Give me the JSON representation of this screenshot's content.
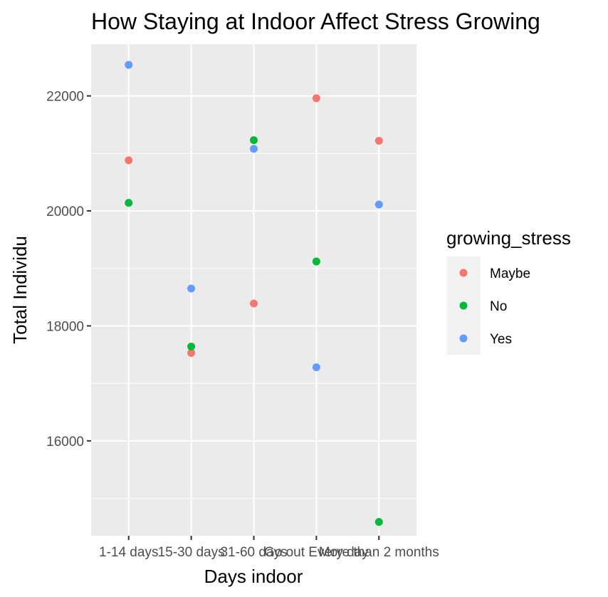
{
  "chart_data": {
    "type": "scatter",
    "title": "How Staying at Indoor Affect Stress Growing",
    "xlabel": "Days indoor",
    "ylabel": "Total Individu",
    "categories": [
      "1-14 days",
      "15-30 days",
      "31-60 days",
      "Go out Every day",
      "More than 2 months"
    ],
    "ylim": [
      14350,
      22900
    ],
    "yticks": [
      16000,
      18000,
      20000,
      22000
    ],
    "ytick_labels": [
      "16000",
      "18000",
      "20000",
      "22000"
    ],
    "grid": true,
    "legend": {
      "title": "growing_stress",
      "position": "right"
    },
    "series": [
      {
        "name": "Maybe",
        "color": "#F8766D",
        "values": [
          20880,
          17530,
          18390,
          21960,
          21220
        ]
      },
      {
        "name": "No",
        "color": "#00BA38",
        "values": [
          20140,
          17640,
          21230,
          19120,
          14590
        ]
      },
      {
        "name": "Yes",
        "color": "#619CFF",
        "values": [
          22540,
          18650,
          21080,
          17280,
          20110
        ]
      }
    ]
  }
}
